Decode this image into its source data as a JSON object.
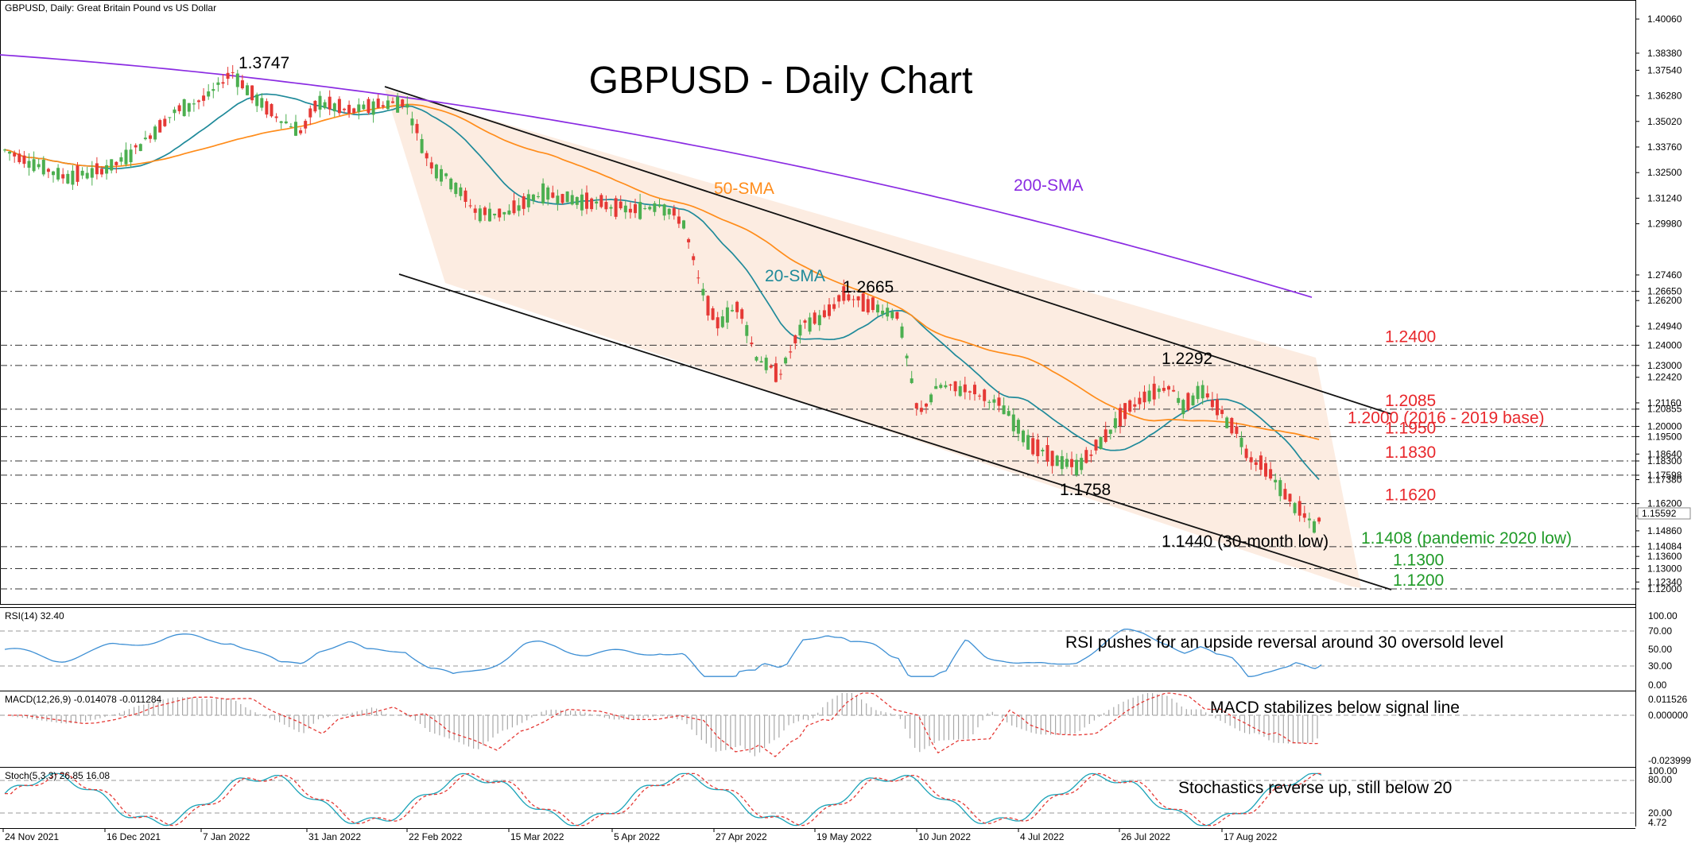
{
  "header": {
    "symbol_info": "GBPUSD, Daily:  Great Britain Pound vs US Dollar",
    "chart_title": "GBPUSD - Daily Chart"
  },
  "colors": {
    "bull": "#4caf50",
    "bear": "#e53935",
    "sma20": "#1f8a9a",
    "sma50": "#ff8c1a",
    "sma200": "#8a2be2",
    "channel_fill": "#fbe9dc",
    "red_text": "#e8272b",
    "green_text": "#1f9a27",
    "rsi": "#3d8fd4",
    "macd_signal": "#e53935",
    "stoch_main": "#1aa3b8",
    "stoch_signal": "#e53935"
  },
  "panels": {
    "rsi": {
      "header": "RSI(14) 32.40",
      "annotation": "RSI pushes for an upside reversal around 30 oversold level",
      "levels": [
        "100.00",
        "70.00",
        "50.00",
        "30.00",
        "0.00"
      ]
    },
    "macd": {
      "header": "MACD(12,26,9) -0.014078 -0.011284",
      "annotation": "MACD stabilizes below signal line",
      "levels": [
        "0.011526",
        "0.000000",
        "-0.023999"
      ]
    },
    "stoch": {
      "header": "Stoch(5,3,3) 26.85 16.08",
      "annotation": "Stochastics reverse up, still below 20",
      "levels": [
        "100.00",
        "80.00",
        "20.00",
        "4.72"
      ]
    }
  },
  "price_axis": {
    "labels": [
      "1.40060",
      "1.38380",
      "1.37540",
      "1.36280",
      "1.35020",
      "1.33760",
      "1.32500",
      "1.31240",
      "1.29980",
      "1.27460",
      "1.26650",
      "1.26200",
      "1.24940",
      "1.24000",
      "1.23000",
      "1.22420",
      "1.21160",
      "1.20855",
      "1.20000",
      "1.19500",
      "1.18640",
      "1.18300",
      "1.17598",
      "1.17380",
      "1.16200",
      "1.15592",
      "1.14860",
      "1.14084",
      "1.13600",
      "1.13000",
      "1.12340",
      "1.12000"
    ],
    "current_price": "1.15592"
  },
  "date_axis": [
    "24 Nov 2021",
    "16 Dec 2021",
    "7 Jan 2022",
    "31 Jan 2022",
    "22 Feb 2022",
    "15 Mar 2022",
    "5 Apr 2022",
    "27 Apr 2022",
    "19 May 2022",
    "10 Jun 2022",
    "4 Jul 2022",
    "26 Jul 2022",
    "17 Aug 2022"
  ],
  "chart_data": {
    "type": "candlestick",
    "title": "GBPUSD - Daily Chart",
    "ylim": [
      1.115,
      1.406
    ],
    "series": [
      {
        "name": "200-SMA"
      },
      {
        "name": "50-SMA"
      },
      {
        "name": "20-SMA"
      }
    ],
    "annotations": {
      "high_1_3747": "1.3747",
      "high_1_2665": "1.2665",
      "high_1_2292": "1.2292",
      "low_1_1758": "1.1758",
      "low_1_1440": "1.1440 (30-month low)"
    },
    "levels": [
      {
        "price": 1.2665,
        "label": ""
      },
      {
        "price": 1.24,
        "label": "1.2400",
        "color": "red"
      },
      {
        "price": 1.23,
        "label": ""
      },
      {
        "price": 1.2085,
        "label": "1.2085",
        "color": "red"
      },
      {
        "price": 1.2,
        "label": "1.2000 (2016 - 2019 base)",
        "color": "red"
      },
      {
        "price": 1.195,
        "label": "1.1950",
        "color": "red"
      },
      {
        "price": 1.183,
        "label": "1.1830",
        "color": "red"
      },
      {
        "price": 1.176,
        "label": ""
      },
      {
        "price": 1.162,
        "label": "1.1620",
        "color": "red"
      },
      {
        "price": 1.1408,
        "label": "1.1408 (pandemic 2020  low)",
        "color": "green"
      },
      {
        "price": 1.13,
        "label": "1.1300",
        "color": "green"
      },
      {
        "price": 1.12,
        "label": "1.1200",
        "color": "green"
      }
    ],
    "key_points": [
      {
        "date": "7 Jan 2022",
        "value": 1.3747
      },
      {
        "date": "19 May 2022",
        "value": 1.2665
      },
      {
        "date": "26 Jul 2022",
        "value": 1.2292
      },
      {
        "date": "4 Jul 2022",
        "value": 1.1758
      },
      {
        "date": "17 Aug 2022",
        "value": 1.144
      }
    ]
  }
}
